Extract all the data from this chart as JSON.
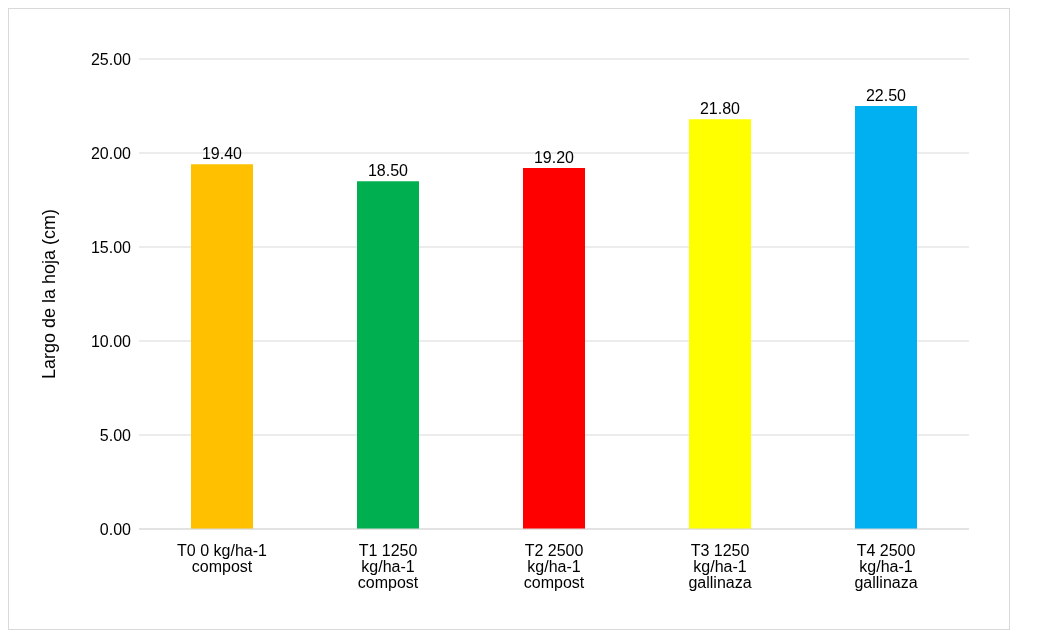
{
  "chart_data": {
    "type": "bar",
    "ylabel": "Largo de la hoja (cm)",
    "categories": [
      "T0 0 kg/ha-1 compost",
      "T1 1250 kg/ha-1 compost",
      "T2 2500 kg/ha-1 compost",
      "T3 1250 kg/ha-1 gallinaza",
      "T4 2500 kg/ha-1 gallinaza"
    ],
    "values": [
      19.4,
      18.5,
      19.2,
      21.8,
      22.5
    ],
    "colors": [
      "#ffc000",
      "#00b050",
      "#ff0000",
      "#ffff00",
      "#00b0f0"
    ],
    "value_labels": [
      "19.40",
      "18.50",
      "19.20",
      "21.80",
      "22.50"
    ],
    "ylim": [
      0,
      25
    ],
    "yticks": [
      {
        "value": 0,
        "label": "0.00"
      },
      {
        "value": 5,
        "label": "5.00"
      },
      {
        "value": 10,
        "label": "10.00"
      },
      {
        "value": 15,
        "label": "15.00"
      },
      {
        "value": 20,
        "label": "20.00"
      },
      {
        "value": 25,
        "label": "25.00"
      }
    ],
    "grid": "y",
    "legend": false
  }
}
